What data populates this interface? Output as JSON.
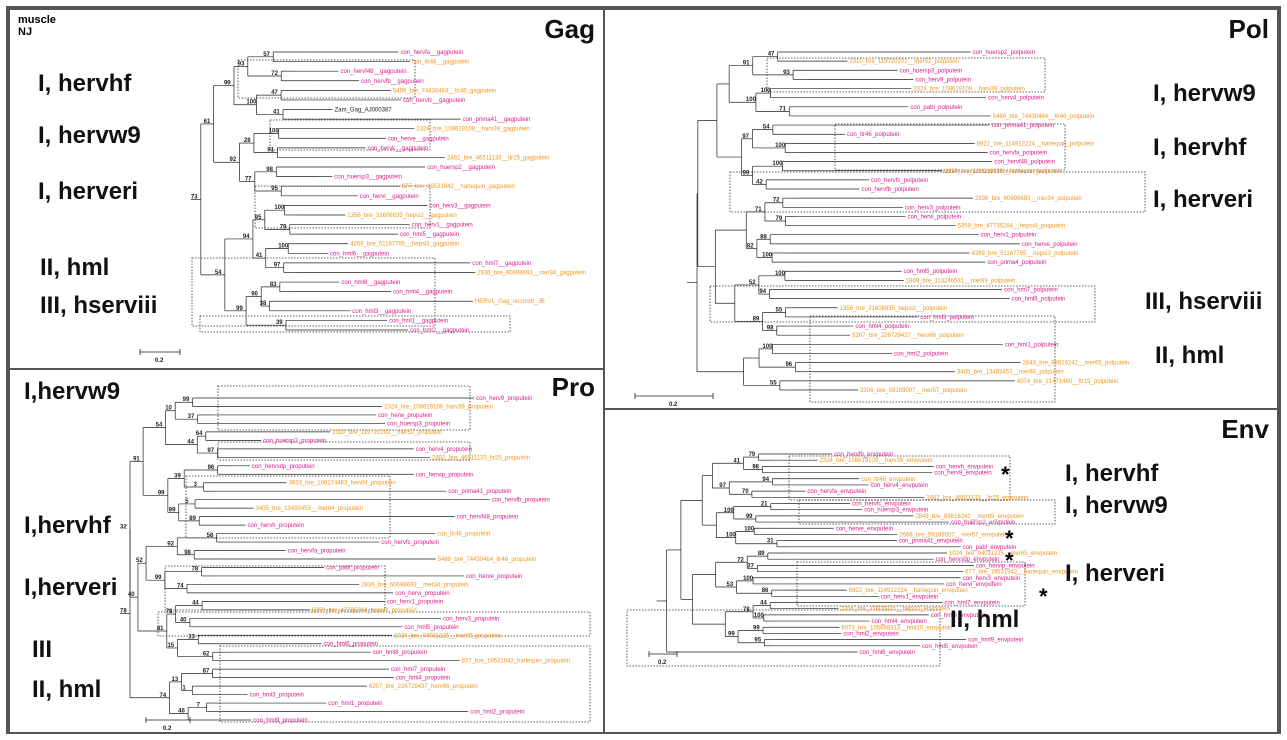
{
  "method": {
    "line1": "muscle",
    "line2": "NJ"
  },
  "scale": "0.2",
  "panels": [
    {
      "id": "gag",
      "title": "Gag",
      "groups": [
        "I, hervhf",
        "I, hervw9",
        "I, herveri",
        "II, hml",
        "III, hserviii"
      ],
      "magenta": [
        "con_hervfa__gagputein",
        "con_hervf48__gagputein",
        "con_hervfb__gagputein",
        "con_hervfc__gagputein",
        "con_prima41__gagputein",
        "con_herve__gagputein",
        "con_hervk__gagputein",
        "con_huersp2__gagputein",
        "con_huersp3__gagputein",
        "con_hervi__gagputein",
        "con_herv3__gagputein",
        "con_herv1__gagputein",
        "con_hml5__gagputein",
        "con_hml6__gagputein",
        "con_hml7__gagputein",
        "con_hml8__gagputein",
        "con_hml4__gagputein",
        "con_hml3__gagputein",
        "con_hml1__gagputein",
        "con_hml2__gagputein"
      ],
      "orange": [
        "con_ltr46__gagputein",
        "5489_bre_74430464__ltr46_gagputein",
        "2324_bre_108619109__harv39_gagputein",
        "2482_bre_46511133__ltr25_gagputein",
        "877_bre_19531942__harlequin_gagputein",
        "1356_bre_31606835_hepsi2__gagputein",
        "4269_bre_51167765__hepsi3_gagputein",
        "2836_bre_60698693__mer34_gagputein",
        "HERVL_Gag_reconstr_JB"
      ],
      "black": [
        "Zam_Gag_AJ000387"
      ],
      "boot": [
        "57",
        "72",
        "47",
        "41",
        "100",
        "91",
        "98",
        "95",
        "100",
        "79",
        "100",
        "97",
        "83",
        "38",
        "39",
        "93",
        "100",
        "28",
        "77",
        "95",
        "41",
        "90",
        "99",
        "92",
        "94",
        "99",
        "61",
        "54",
        "73"
      ]
    },
    {
      "id": "pol",
      "title": "Pol",
      "groups": [
        "I, hervw9",
        "I, hervhf",
        "I, herveri",
        "III, hserviii",
        "II, hml"
      ],
      "magenta": [
        "con_huersp2_polputein",
        "con_huersp3_polputein",
        "con_herv9_polputein",
        "con_herv4_polputein",
        "con_pabl_polputein",
        "con_prima41_polputein",
        "con_ltr46_polputein",
        "con_hervfa_polputein",
        "con_hervf48_polputein",
        "con_hervfc_polputein",
        "con_hervfb_polputein",
        "con_herv3_polputein",
        "con_hervi_polputein",
        "con_herv1_polputein",
        "con_herve_polputein",
        "con_prima4_polputein",
        "con_hml5_polputein",
        "con_hml7_polputein",
        "con_hml8_polputein",
        "con_hml3_polputein",
        "con_hml4_polputein",
        "con_hml1_polputein",
        "con_hml2_polputein"
      ],
      "orange": [
        "2310_bre_119720202__mer52_polputein",
        "2324_bre_108619109__harv39_polputein",
        "5489_bre_74430464__ltr46_polputein",
        "6922_bre_114912224__harlequin_polputein",
        "2630_bre_129218030__harlequin_polputein",
        "2836_bre_60698693__mer34_polputein",
        "5359_bre_47735264__hepsi4_polputein",
        "4269_bre_51167765__hepsi3_polputein",
        "1869_bre_113246531__mer89_polputein",
        "1356_bre_31606835_hepsi2__polputein",
        "6207_bre_226729437__herv66_polputein",
        "2843_bre_69816242__mer65_polputein",
        "3405_bre_13493453__mer84_polputein",
        "4074_bre_21471460__ltr19_polputein",
        "3306_bre_59189007__mer57_polputein"
      ],
      "black": [],
      "boot": [
        "47",
        "93",
        "100",
        "71",
        "54",
        "100",
        "100",
        "42",
        "72",
        "79",
        "88",
        "100",
        "100",
        "94",
        "55",
        "98",
        "100",
        "96",
        "55",
        "91",
        "100",
        "97",
        "99",
        "71",
        "82",
        "52",
        "89"
      ]
    },
    {
      "id": "pro",
      "title": "Pro",
      "groups": [
        "I,hervw9",
        "I,hervhf",
        "I,herveri",
        "III",
        "II, hml"
      ],
      "magenta": [
        "con_herv9_proputein",
        "con_herw_proputein",
        "con_huersp3_proputein",
        "con_huersp2_proputein",
        "con_herv4_proputein",
        "con_hervsdp_proputein",
        "con_hervip_proputein",
        "con_prima41_proputein",
        "con_hervfb_proputein",
        "con_hervf48_proputein",
        "con_hervh_proputein",
        "con_hervfc_proputein",
        "con_hervfa_proputein",
        "con_pabl_proputein",
        "con_herve_proputein",
        "con_hervi_proputein",
        "con_herv1_proputein",
        "con_herv3_proputein",
        "con_hml5_proputein",
        "con_hml6_proputein",
        "con_hml8_proputein",
        "con_hml7_proputein",
        "con_hml4_proputein",
        "con_hml3_proputein",
        "con_hml1_proputein",
        "con_hml2_proputein",
        "con_hml9_proputein"
      ],
      "orange": [
        "2324_bre_108619109_harv39_proputein",
        "2310_bre_119720202__mer52_proputein",
        "2482_bre_46511133_ltr25_proputein",
        "3633_bre_106174463_hervhf_proputein",
        "3405_bre_13493453__mer84_proputein",
        "con_ltr46_proputein",
        "5489_bre_74430464_ltr46_proputein",
        "2836_bre_60698693__mer34_proputein",
        "5359_bre_47735264_hepsi4_proputein",
        "1024_bre_94011225__mer65_proputein",
        "877_bre_19531942_harlequin_proputein",
        "6207_bre_226729437_herv66_proputein"
      ],
      "black": [],
      "boot": [
        "99",
        "37",
        "64",
        "97",
        "96",
        "3",
        "5",
        "89",
        "58",
        "98",
        "78",
        "74",
        "44",
        "40",
        "33",
        "62",
        "87",
        "1",
        "7",
        "10",
        "44",
        "39",
        "99",
        "92",
        "99",
        "78",
        "15",
        "13",
        "46",
        "54",
        "99",
        "52",
        "81",
        "74",
        "91",
        "40",
        "32",
        "78"
      ]
    },
    {
      "id": "env",
      "title": "Env",
      "groups": [
        "I, hervhf",
        "I, hervw9",
        "I, herveri",
        "II, hml"
      ],
      "magenta": [
        "con_hervfb_envputein",
        "con_hervh_envputein",
        "con_herv9_envputein",
        "con_herv4_envputein",
        "con_hervfa_envputein",
        "con_hervfc_envputein",
        "con_huersp3_envputein",
        "con_huersp2_envputein",
        "con_herve_envputein",
        "con_prima41_envputein",
        "con_pabl_envputein",
        "con_hervsdp_envputein",
        "con_hervip_envputein",
        "con_herv3_envputein",
        "con_hervi_envputein",
        "con_herv1_envputein",
        "con_hml7_envputein",
        "con_hml8_envputein",
        "con_hml4_envputein",
        "con_hml2_envputein",
        "con_hml9_envputein",
        "con_hml5_envputein",
        "con_hml6_envputein"
      ],
      "orange": [
        "2324_bre_108619109__harv39_envputein",
        "con_ltr46_envputein",
        "2482_bre_46511133__ltr25_envputein",
        "2843_bre_69816242__mer65_envputein",
        "3566_bre_59189007__mer57_envputein",
        "1024_bre_94011225__mer65_envputein",
        "877_bre_19531942__harlequin_envputein",
        "6922_bre_114912224__harlequin_envputein",
        "1356_bre_31606835__hepsi2_envputein",
        "6073_bre_155688313__hml10_envputein"
      ],
      "black": [],
      "boot": [
        "79",
        "98",
        "94",
        "70",
        "21",
        "99",
        "100",
        "31",
        "89",
        "37",
        "100",
        "86",
        "44",
        "100",
        "99",
        "95",
        "41",
        "97",
        "100",
        "100",
        "72",
        "53",
        "78",
        "99"
      ]
    }
  ]
}
